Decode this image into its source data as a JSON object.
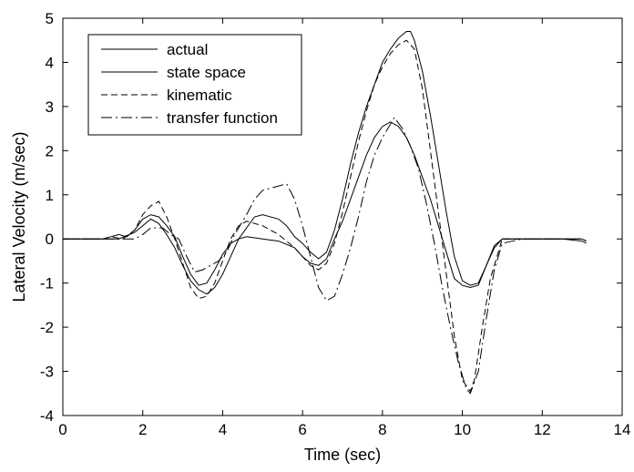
{
  "chart_data": {
    "type": "line",
    "title": "",
    "xlabel": "Time (sec)",
    "ylabel": "Lateral Velocity (m/sec)",
    "xlim": [
      0,
      14
    ],
    "ylim": [
      -4,
      5
    ],
    "x_ticks": [
      0,
      2,
      4,
      6,
      8,
      10,
      12,
      14
    ],
    "y_ticks": [
      -4,
      -3,
      -2,
      -1,
      0,
      1,
      2,
      3,
      4,
      5
    ],
    "grid": false,
    "legend_position": "top-left",
    "series": [
      {
        "name": "actual",
        "style": "solid",
        "color": "#000000",
        "points": [
          [
            0,
            0
          ],
          [
            0.5,
            0
          ],
          [
            1,
            0
          ],
          [
            1.2,
            0.05
          ],
          [
            1.4,
            0.1
          ],
          [
            1.6,
            0.05
          ],
          [
            1.8,
            0.2
          ],
          [
            2,
            0.45
          ],
          [
            2.2,
            0.55
          ],
          [
            2.4,
            0.5
          ],
          [
            2.6,
            0.3
          ],
          [
            2.8,
            0.05
          ],
          [
            3,
            -0.4
          ],
          [
            3.2,
            -0.8
          ],
          [
            3.4,
            -1.05
          ],
          [
            3.6,
            -1.0
          ],
          [
            3.8,
            -0.7
          ],
          [
            4,
            -0.35
          ],
          [
            4.2,
            -0.1
          ],
          [
            4.4,
            0.0
          ],
          [
            4.6,
            0.05
          ],
          [
            5,
            0.0
          ],
          [
            5.4,
            -0.05
          ],
          [
            5.8,
            -0.2
          ],
          [
            6.0,
            -0.4
          ],
          [
            6.2,
            -0.55
          ],
          [
            6.4,
            -0.6
          ],
          [
            6.6,
            -0.45
          ],
          [
            6.8,
            0.0
          ],
          [
            7,
            0.4
          ],
          [
            7.2,
            0.9
          ],
          [
            7.4,
            1.4
          ],
          [
            7.6,
            1.9
          ],
          [
            7.8,
            2.3
          ],
          [
            8.0,
            2.55
          ],
          [
            8.2,
            2.65
          ],
          [
            8.4,
            2.55
          ],
          [
            8.6,
            2.3
          ],
          [
            8.8,
            1.9
          ],
          [
            9.0,
            1.4
          ],
          [
            9.2,
            0.9
          ],
          [
            9.4,
            0.3
          ],
          [
            9.6,
            -0.3
          ],
          [
            9.8,
            -0.9
          ],
          [
            10.0,
            -1.05
          ],
          [
            10.2,
            -1.1
          ],
          [
            10.4,
            -1.05
          ],
          [
            10.6,
            -0.6
          ],
          [
            10.8,
            -0.15
          ],
          [
            11,
            0.0
          ],
          [
            11.5,
            0.0
          ],
          [
            12,
            0.0
          ],
          [
            12.5,
            0.0
          ],
          [
            13,
            -0.05
          ],
          [
            13.1,
            -0.1
          ]
        ]
      },
      {
        "name": "state space",
        "style": "solid",
        "color": "#000000",
        "points": [
          [
            0,
            0
          ],
          [
            0.5,
            0
          ],
          [
            1,
            0
          ],
          [
            1.4,
            0.0
          ],
          [
            1.8,
            0.15
          ],
          [
            2,
            0.3
          ],
          [
            2.2,
            0.45
          ],
          [
            2.4,
            0.35
          ],
          [
            2.6,
            0.1
          ],
          [
            2.8,
            -0.2
          ],
          [
            3.0,
            -0.6
          ],
          [
            3.2,
            -0.95
          ],
          [
            3.4,
            -1.15
          ],
          [
            3.6,
            -1.25
          ],
          [
            3.8,
            -1.1
          ],
          [
            4.0,
            -0.8
          ],
          [
            4.2,
            -0.4
          ],
          [
            4.4,
            0.0
          ],
          [
            4.6,
            0.25
          ],
          [
            4.8,
            0.5
          ],
          [
            5.0,
            0.55
          ],
          [
            5.4,
            0.45
          ],
          [
            5.6,
            0.3
          ],
          [
            5.8,
            0.05
          ],
          [
            6.0,
            -0.1
          ],
          [
            6.2,
            -0.3
          ],
          [
            6.4,
            -0.45
          ],
          [
            6.6,
            -0.3
          ],
          [
            6.8,
            0.2
          ],
          [
            7.0,
            0.9
          ],
          [
            7.2,
            1.7
          ],
          [
            7.4,
            2.4
          ],
          [
            7.6,
            3.0
          ],
          [
            7.8,
            3.5
          ],
          [
            8.0,
            4.0
          ],
          [
            8.2,
            4.3
          ],
          [
            8.4,
            4.55
          ],
          [
            8.6,
            4.7
          ],
          [
            8.7,
            4.7
          ],
          [
            8.8,
            4.5
          ],
          [
            9.0,
            3.8
          ],
          [
            9.2,
            2.8
          ],
          [
            9.4,
            1.7
          ],
          [
            9.6,
            0.6
          ],
          [
            9.8,
            -0.4
          ],
          [
            10.0,
            -0.95
          ],
          [
            10.2,
            -1.05
          ],
          [
            10.4,
            -1.0
          ],
          [
            10.6,
            -0.6
          ],
          [
            10.8,
            -0.2
          ],
          [
            11,
            0.0
          ],
          [
            11.5,
            0.0
          ],
          [
            12,
            0.0
          ],
          [
            12.5,
            0.0
          ],
          [
            13,
            0.0
          ],
          [
            13.1,
            -0.05
          ]
        ]
      },
      {
        "name": "kinematic",
        "style": "dashed",
        "color": "#000000",
        "points": [
          [
            0,
            0
          ],
          [
            0.5,
            0
          ],
          [
            1,
            0
          ],
          [
            1.2,
            0.05
          ],
          [
            1.5,
            0.0
          ],
          [
            1.8,
            0.2
          ],
          [
            2.0,
            0.55
          ],
          [
            2.2,
            0.75
          ],
          [
            2.4,
            0.85
          ],
          [
            2.6,
            0.5
          ],
          [
            2.8,
            0.0
          ],
          [
            3.0,
            -0.55
          ],
          [
            3.2,
            -1.1
          ],
          [
            3.4,
            -1.35
          ],
          [
            3.6,
            -1.3
          ],
          [
            3.8,
            -1.0
          ],
          [
            4.0,
            -0.5
          ],
          [
            4.2,
            0.0
          ],
          [
            4.4,
            0.3
          ],
          [
            4.6,
            0.4
          ],
          [
            5.0,
            0.3
          ],
          [
            5.4,
            0.1
          ],
          [
            5.8,
            -0.2
          ],
          [
            6.0,
            -0.4
          ],
          [
            6.2,
            -0.6
          ],
          [
            6.4,
            -0.7
          ],
          [
            6.6,
            -0.55
          ],
          [
            6.8,
            -0.1
          ],
          [
            7.0,
            0.6
          ],
          [
            7.2,
            1.4
          ],
          [
            7.4,
            2.2
          ],
          [
            7.6,
            2.9
          ],
          [
            7.8,
            3.5
          ],
          [
            8.0,
            3.9
          ],
          [
            8.2,
            4.2
          ],
          [
            8.4,
            4.4
          ],
          [
            8.6,
            4.5
          ],
          [
            8.8,
            4.3
          ],
          [
            9.0,
            3.4
          ],
          [
            9.2,
            2.0
          ],
          [
            9.4,
            0.6
          ],
          [
            9.6,
            -0.8
          ],
          [
            9.8,
            -2.2
          ],
          [
            10.0,
            -3.2
          ],
          [
            10.2,
            -3.45
          ],
          [
            10.3,
            -3.2
          ],
          [
            10.5,
            -2.0
          ],
          [
            10.7,
            -0.9
          ],
          [
            10.9,
            -0.3
          ],
          [
            11,
            0.0
          ],
          [
            11.5,
            0.0
          ],
          [
            12,
            0.0
          ],
          [
            12.5,
            0.0
          ],
          [
            13,
            0.0
          ],
          [
            13.1,
            -0.05
          ]
        ]
      },
      {
        "name": "transfer function",
        "style": "dashdot",
        "color": "#000000",
        "points": [
          [
            0,
            0
          ],
          [
            0.5,
            0
          ],
          [
            1,
            0
          ],
          [
            1.4,
            0.0
          ],
          [
            1.8,
            0.0
          ],
          [
            2.0,
            0.1
          ],
          [
            2.2,
            0.25
          ],
          [
            2.5,
            0.25
          ],
          [
            2.7,
            0.1
          ],
          [
            2.9,
            0.0
          ],
          [
            3.1,
            -0.4
          ],
          [
            3.3,
            -0.75
          ],
          [
            3.5,
            -0.7
          ],
          [
            3.7,
            -0.6
          ],
          [
            3.9,
            -0.5
          ],
          [
            4.1,
            -0.3
          ],
          [
            4.3,
            0.1
          ],
          [
            4.6,
            0.55
          ],
          [
            4.8,
            0.9
          ],
          [
            5.0,
            1.1
          ],
          [
            5.4,
            1.2
          ],
          [
            5.6,
            1.25
          ],
          [
            5.8,
            0.9
          ],
          [
            6.0,
            0.3
          ],
          [
            6.2,
            -0.4
          ],
          [
            6.4,
            -1.1
          ],
          [
            6.6,
            -1.4
          ],
          [
            6.8,
            -1.3
          ],
          [
            7.0,
            -0.8
          ],
          [
            7.2,
            -0.2
          ],
          [
            7.4,
            0.5
          ],
          [
            7.6,
            1.3
          ],
          [
            7.8,
            1.9
          ],
          [
            8.0,
            2.3
          ],
          [
            8.3,
            2.75
          ],
          [
            8.5,
            2.5
          ],
          [
            8.7,
            2.1
          ],
          [
            8.9,
            1.6
          ],
          [
            9.1,
            0.8
          ],
          [
            9.3,
            -0.1
          ],
          [
            9.5,
            -1.1
          ],
          [
            9.7,
            -2.0
          ],
          [
            9.9,
            -2.8
          ],
          [
            10.1,
            -3.4
          ],
          [
            10.2,
            -3.5
          ],
          [
            10.4,
            -3.0
          ],
          [
            10.6,
            -1.8
          ],
          [
            10.8,
            -0.7
          ],
          [
            11.0,
            -0.1
          ],
          [
            11.5,
            0.0
          ],
          [
            12,
            0.0
          ],
          [
            12.5,
            0.0
          ],
          [
            13,
            0.0
          ],
          [
            13.1,
            -0.05
          ]
        ]
      }
    ]
  }
}
